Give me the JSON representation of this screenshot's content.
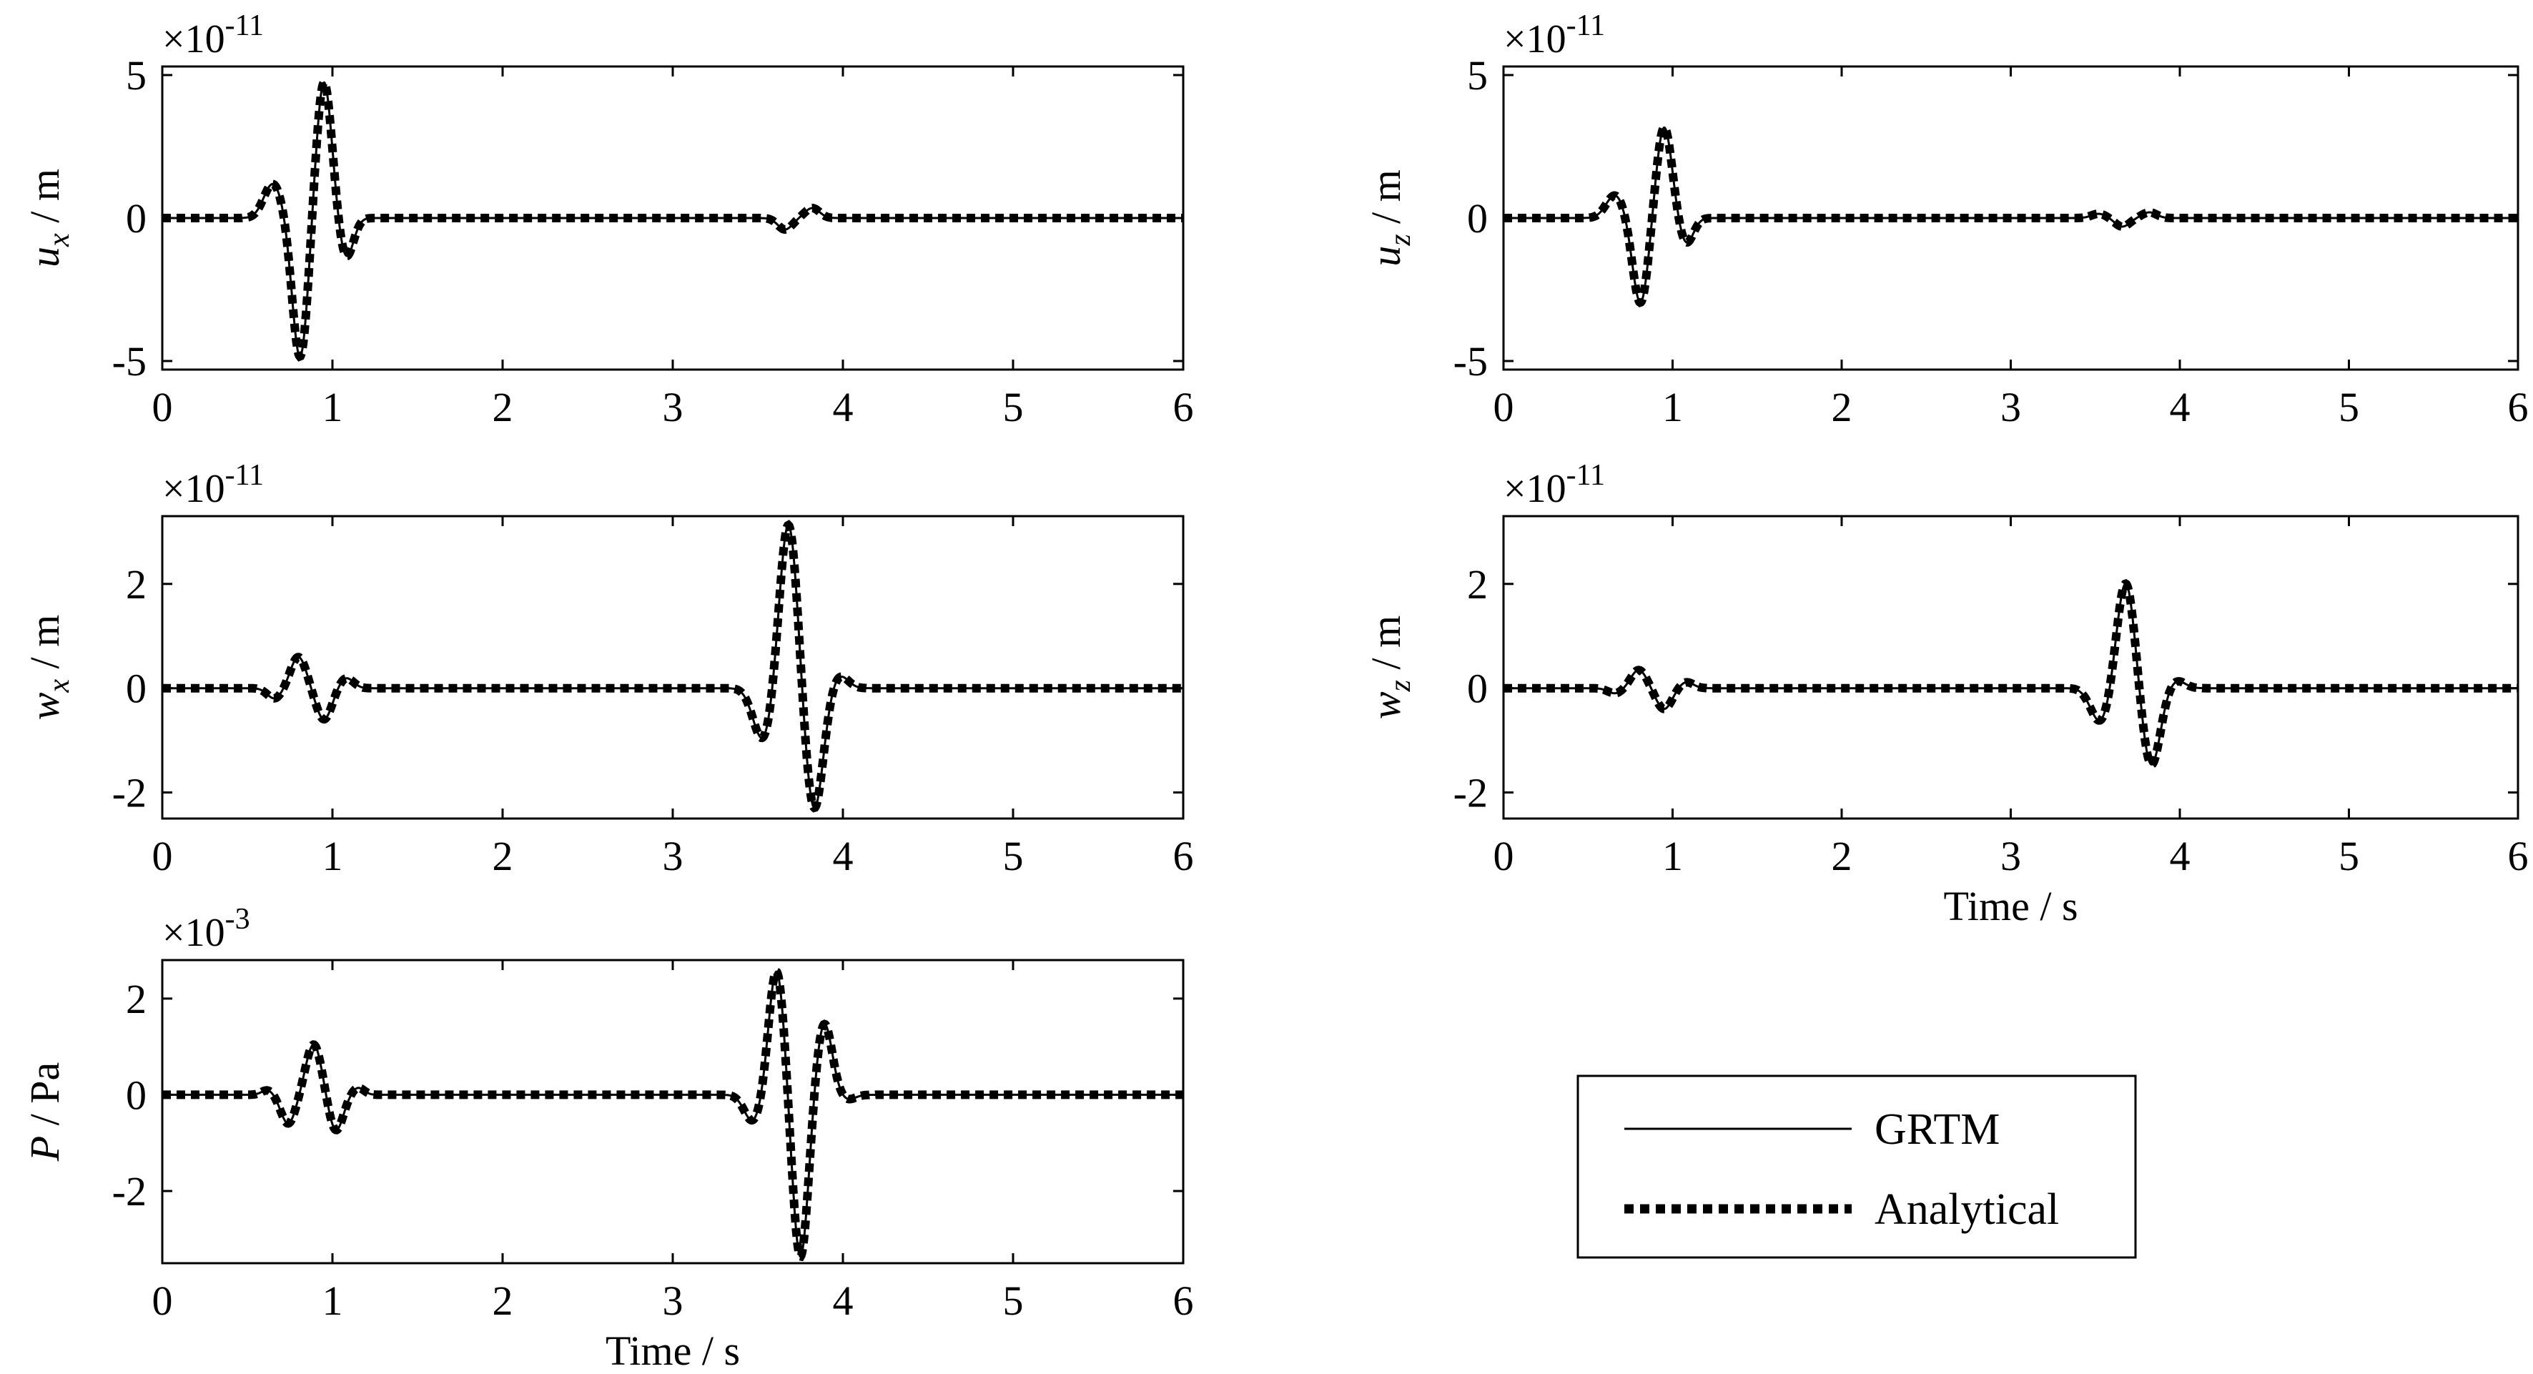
{
  "figure": {
    "line_color": "#000000",
    "legend": {
      "entries": [
        {
          "label": "GRTM",
          "style": "solid"
        },
        {
          "label": "Analytical",
          "style": "dotted-thick"
        }
      ]
    }
  },
  "chart_data": [
    {
      "type": "line",
      "panel": "top-left",
      "ylabel_symbol": "u",
      "ylabel_sub": "x",
      "ylabel_unit": " / m",
      "exponent_base": "×10",
      "exponent_power": "-11",
      "xlabel": "",
      "xlim": [
        0,
        6
      ],
      "ylim": [
        -5.3,
        5.3
      ],
      "xticks": [
        "0",
        "1",
        "2",
        "3",
        "4",
        "5",
        "6"
      ],
      "yticks": [
        {
          "v": 5,
          "t": "5"
        },
        {
          "v": 0,
          "t": "0"
        },
        {
          "v": -5,
          "t": "-5"
        }
      ],
      "pulses": [
        {
          "t": 0.65,
          "a": 1.2,
          "w": 0.075
        },
        {
          "t": 0.81,
          "a": -4.9,
          "w": 0.065
        },
        {
          "t": 0.95,
          "a": 4.8,
          "w": 0.065
        },
        {
          "t": 1.08,
          "a": -1.4,
          "w": 0.06
        },
        {
          "t": 3.66,
          "a": -0.4,
          "w": 0.06
        },
        {
          "t": 3.82,
          "a": 0.35,
          "w": 0.06
        }
      ],
      "series": [
        {
          "name": "GRTM"
        },
        {
          "name": "Analytical"
        }
      ]
    },
    {
      "type": "line",
      "panel": "top-right",
      "ylabel_symbol": "u",
      "ylabel_sub": "z",
      "ylabel_unit": " / m",
      "exponent_base": "×10",
      "exponent_power": "-11",
      "xlabel": "",
      "xlim": [
        0,
        6
      ],
      "ylim": [
        -5.3,
        5.3
      ],
      "xticks": [
        "0",
        "1",
        "2",
        "3",
        "4",
        "5",
        "6"
      ],
      "yticks": [
        {
          "v": 5,
          "t": "5"
        },
        {
          "v": 0,
          "t": "0"
        },
        {
          "v": -5,
          "t": "-5"
        }
      ],
      "pulses": [
        {
          "t": 0.66,
          "a": 0.8,
          "w": 0.075
        },
        {
          "t": 0.81,
          "a": -3.0,
          "w": 0.065
        },
        {
          "t": 0.95,
          "a": 3.2,
          "w": 0.065
        },
        {
          "t": 1.08,
          "a": -0.9,
          "w": 0.06
        },
        {
          "t": 3.52,
          "a": 0.15,
          "w": 0.06
        },
        {
          "t": 3.66,
          "a": -0.3,
          "w": 0.06
        },
        {
          "t": 3.82,
          "a": 0.2,
          "w": 0.06
        }
      ],
      "series": [
        {
          "name": "GRTM"
        },
        {
          "name": "Analytical"
        }
      ]
    },
    {
      "type": "line",
      "panel": "middle-left",
      "ylabel_symbol": "w",
      "ylabel_sub": "x",
      "ylabel_unit": " / m",
      "exponent_base": "×10",
      "exponent_power": "-11",
      "xlabel": "",
      "xlim": [
        0,
        6
      ],
      "ylim": [
        -2.5,
        3.3
      ],
      "xticks": [
        "0",
        "1",
        "2",
        "3",
        "4",
        "5",
        "6"
      ],
      "yticks": [
        {
          "v": 2,
          "t": "2"
        },
        {
          "v": 0,
          "t": "0"
        },
        {
          "v": -2,
          "t": "-2"
        }
      ],
      "pulses": [
        {
          "t": 0.66,
          "a": -0.2,
          "w": 0.06
        },
        {
          "t": 0.8,
          "a": 0.6,
          "w": 0.065
        },
        {
          "t": 0.95,
          "a": -0.6,
          "w": 0.065
        },
        {
          "t": 1.08,
          "a": 0.2,
          "w": 0.06
        },
        {
          "t": 3.53,
          "a": -1.0,
          "w": 0.08
        },
        {
          "t": 3.68,
          "a": 3.2,
          "w": 0.075
        },
        {
          "t": 3.83,
          "a": -2.35,
          "w": 0.075
        },
        {
          "t": 3.98,
          "a": 0.25,
          "w": 0.07
        }
      ],
      "series": [
        {
          "name": "GRTM"
        },
        {
          "name": "Analytical"
        }
      ]
    },
    {
      "type": "line",
      "panel": "middle-right",
      "ylabel_symbol": "w",
      "ylabel_sub": "z",
      "ylabel_unit": " / m",
      "exponent_base": "×10",
      "exponent_power": "-11",
      "xlabel": "Time / s",
      "xlim": [
        0,
        6
      ],
      "ylim": [
        -2.5,
        3.3
      ],
      "xticks": [
        "0",
        "1",
        "2",
        "3",
        "4",
        "5",
        "6"
      ],
      "yticks": [
        {
          "v": 2,
          "t": "2"
        },
        {
          "v": 0,
          "t": "0"
        },
        {
          "v": -2,
          "t": "-2"
        }
      ],
      "pulses": [
        {
          "t": 0.66,
          "a": -0.1,
          "w": 0.06
        },
        {
          "t": 0.8,
          "a": 0.35,
          "w": 0.065
        },
        {
          "t": 0.95,
          "a": -0.4,
          "w": 0.065
        },
        {
          "t": 1.08,
          "a": 0.12,
          "w": 0.06
        },
        {
          "t": 3.53,
          "a": -0.65,
          "w": 0.08
        },
        {
          "t": 3.68,
          "a": 2.05,
          "w": 0.075
        },
        {
          "t": 3.83,
          "a": -1.5,
          "w": 0.075
        },
        {
          "t": 3.98,
          "a": 0.15,
          "w": 0.07
        }
      ],
      "series": [
        {
          "name": "GRTM"
        },
        {
          "name": "Analytical"
        }
      ]
    },
    {
      "type": "line",
      "panel": "bottom-left",
      "ylabel_symbol": "P",
      "ylabel_sub": "",
      "ylabel_unit": " / Pa",
      "exponent_base": "×10",
      "exponent_power": "-3",
      "xlabel": "Time / s",
      "xlim": [
        0,
        6
      ],
      "ylim": [
        -3.5,
        2.8
      ],
      "xticks": [
        "0",
        "1",
        "2",
        "3",
        "4",
        "5",
        "6"
      ],
      "yticks": [
        {
          "v": 2,
          "t": "2"
        },
        {
          "v": 0,
          "t": "0"
        },
        {
          "v": -2,
          "t": "-2"
        }
      ],
      "pulses": [
        {
          "t": 0.62,
          "a": 0.1,
          "w": 0.05
        },
        {
          "t": 0.74,
          "a": -0.6,
          "w": 0.06
        },
        {
          "t": 0.89,
          "a": 1.05,
          "w": 0.065
        },
        {
          "t": 1.02,
          "a": -0.75,
          "w": 0.06
        },
        {
          "t": 1.15,
          "a": 0.15,
          "w": 0.05
        },
        {
          "t": 3.47,
          "a": -0.55,
          "w": 0.07
        },
        {
          "t": 3.61,
          "a": 2.6,
          "w": 0.065
        },
        {
          "t": 3.75,
          "a": -3.4,
          "w": 0.065
        },
        {
          "t": 3.89,
          "a": 1.5,
          "w": 0.065
        },
        {
          "t": 4.03,
          "a": -0.1,
          "w": 0.06
        }
      ],
      "series": [
        {
          "name": "GRTM"
        },
        {
          "name": "Analytical"
        }
      ]
    }
  ]
}
